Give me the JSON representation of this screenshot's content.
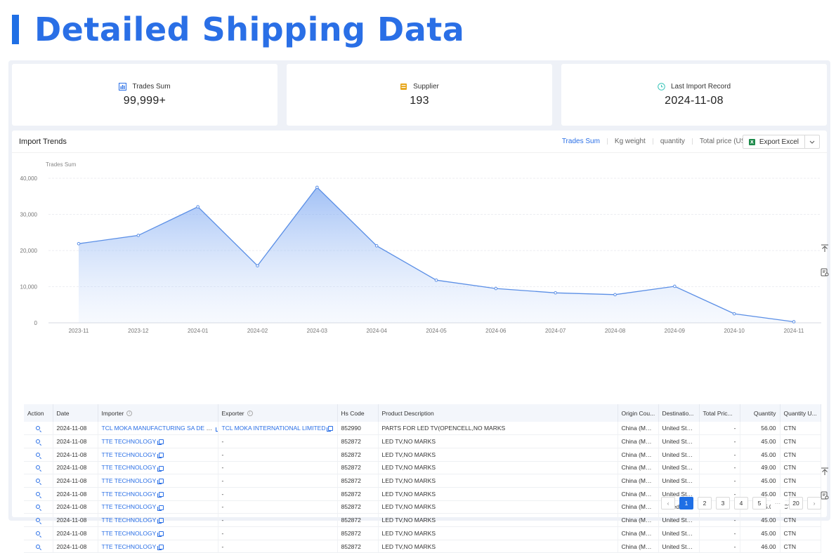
{
  "page": {
    "title": "Detailed Shipping Data"
  },
  "stats": [
    {
      "label": "Trades Sum",
      "value": "99,999+",
      "icon": "bar-chart-icon",
      "color": "#2a6fe6"
    },
    {
      "label": "Supplier",
      "value": "193",
      "icon": "store-icon",
      "color": "#e6a417"
    },
    {
      "label": "Last Import Record",
      "value": "2024-11-08",
      "icon": "clock-icon",
      "color": "#36c4b8"
    }
  ],
  "trends": {
    "title": "Import Trends",
    "tabs": [
      "Trades Sum",
      "Kg weight",
      "quantity",
      "Total price (USD)"
    ],
    "active_tab": "Trades Sum",
    "export_label": "Export Excel"
  },
  "chart_data": {
    "type": "area",
    "ylabel": "Trades Sum",
    "ylim": [
      0,
      40000
    ],
    "yticks": [
      "0",
      "10,000",
      "20,000",
      "30,000",
      "40,000"
    ],
    "yticks_values": [
      0,
      10000,
      20000,
      30000,
      40000
    ],
    "categories": [
      "2023-11",
      "2023-12",
      "2024-01",
      "2024-02",
      "2024-03",
      "2024-04",
      "2024-05",
      "2024-06",
      "2024-07",
      "2024-08",
      "2024-09",
      "2024-10",
      "2024-11"
    ],
    "values": [
      21900,
      24200,
      32100,
      15800,
      37500,
      21300,
      11800,
      9500,
      8300,
      7800,
      10100,
      2500,
      300
    ],
    "color": "#5b8fe6"
  },
  "table": {
    "columns": [
      "Action",
      "Date",
      "Importer",
      "Exporter",
      "Hs Code",
      "Product Description",
      "Origin Cou...",
      "Destinatio...",
      "Total Pric...",
      "Quantity",
      "Quantity U..."
    ],
    "rows": [
      {
        "date": "2024-11-08",
        "importer": "TCL MOKA MANUFACTURING SA DE CV",
        "exporter": "TCL MOKA INTERNATIONAL LIMITED",
        "hs": "852990",
        "desc": "PARTS FOR LED TV(OPENCELL,NO MARKS",
        "origin": "China (Main...",
        "dest": "United States",
        "price": "-",
        "qty": "56.00",
        "unit": "CTN"
      },
      {
        "date": "2024-11-08",
        "importer": "TTE TECHNOLOGY",
        "exporter": "-",
        "hs": "852872",
        "desc": "LED TV,NO MARKS",
        "origin": "China (Main...",
        "dest": "United States",
        "price": "-",
        "qty": "45.00",
        "unit": "CTN"
      },
      {
        "date": "2024-11-08",
        "importer": "TTE TECHNOLOGY",
        "exporter": "-",
        "hs": "852872",
        "desc": "LED TV,NO MARKS",
        "origin": "China (Main...",
        "dest": "United States",
        "price": "-",
        "qty": "45.00",
        "unit": "CTN"
      },
      {
        "date": "2024-11-08",
        "importer": "TTE TECHNOLOGY",
        "exporter": "-",
        "hs": "852872",
        "desc": "LED TV,NO MARKS",
        "origin": "China (Main...",
        "dest": "United States",
        "price": "-",
        "qty": "49.00",
        "unit": "CTN"
      },
      {
        "date": "2024-11-08",
        "importer": "TTE TECHNOLOGY",
        "exporter": "-",
        "hs": "852872",
        "desc": "LED TV,NO MARKS",
        "origin": "China (Main...",
        "dest": "United States",
        "price": "-",
        "qty": "45.00",
        "unit": "CTN"
      },
      {
        "date": "2024-11-08",
        "importer": "TTE TECHNOLOGY",
        "exporter": "-",
        "hs": "852872",
        "desc": "LED TV,NO MARKS",
        "origin": "China (Main...",
        "dest": "United States",
        "price": "-",
        "qty": "45.00",
        "unit": "CTN"
      },
      {
        "date": "2024-11-08",
        "importer": "TTE TECHNOLOGY",
        "exporter": "-",
        "hs": "852872",
        "desc": "LED TV,NO MARKS",
        "origin": "China (Main...",
        "dest": "United States",
        "price": "-",
        "qty": "45.00",
        "unit": "CTN"
      },
      {
        "date": "2024-11-08",
        "importer": "TTE TECHNOLOGY",
        "exporter": "-",
        "hs": "852872",
        "desc": "LED TV,NO MARKS",
        "origin": "China (Main...",
        "dest": "United States",
        "price": "-",
        "qty": "45.00",
        "unit": "CTN"
      },
      {
        "date": "2024-11-08",
        "importer": "TTE TECHNOLOGY",
        "exporter": "-",
        "hs": "852872",
        "desc": "LED TV,NO MARKS",
        "origin": "China (Main...",
        "dest": "United States",
        "price": "-",
        "qty": "45.00",
        "unit": "CTN"
      },
      {
        "date": "2024-11-08",
        "importer": "TTE TECHNOLOGY",
        "exporter": "-",
        "hs": "852872",
        "desc": "LED TV,NO MARKS",
        "origin": "China (Main...",
        "dest": "United States",
        "price": "-",
        "qty": "46.00",
        "unit": "CTN"
      }
    ]
  },
  "pagination": {
    "pages": [
      "1",
      "2",
      "3",
      "4",
      "5"
    ],
    "ellipsis": "···",
    "last": "20",
    "current": "1"
  }
}
